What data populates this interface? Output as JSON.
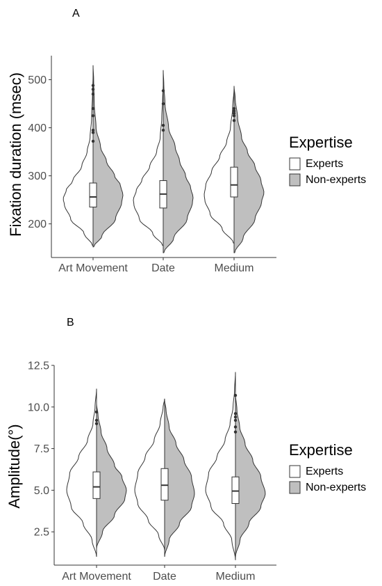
{
  "colors": {
    "experts": "#ffffff",
    "non_experts": "#bfbfbf",
    "outline": "#333333"
  },
  "chart_data": [
    {
      "panel_label": "A",
      "type": "violin",
      "categories": [
        "Art Movement",
        "Date",
        "Medium"
      ],
      "ylabel": "Fixation duration (msec)",
      "xlabel": "",
      "ylim": [
        130,
        550
      ],
      "yticks": [
        200,
        300,
        400,
        500
      ],
      "ytick_labels": [
        "200",
        "300",
        "400",
        "500"
      ],
      "legend": {
        "title": "Expertise",
        "entries": [
          "Experts",
          "Non-experts"
        ],
        "position": "right"
      },
      "series": [
        {
          "name": "Experts",
          "groups": [
            {
              "category": "Art Movement",
              "min": 155,
              "max": 508,
              "mode": 252,
              "profile": [
                [
                  155,
                  0.02
                ],
                [
                  180,
                  0.3
                ],
                [
                  210,
                  0.75
                ],
                [
                  240,
                  0.96
                ],
                [
                  252,
                  1.0
                ],
                [
                  270,
                  0.9
                ],
                [
                  290,
                  0.68
                ],
                [
                  320,
                  0.38
                ],
                [
                  350,
                  0.2
                ],
                [
                  380,
                  0.1
                ],
                [
                  420,
                  0.05
                ],
                [
                  470,
                  0.02
                ],
                [
                  508,
                  0.0
                ]
              ]
            },
            {
              "category": "Date",
              "min": 155,
              "max": 488,
              "mode": 250,
              "profile": [
                [
                  155,
                  0.02
                ],
                [
                  180,
                  0.35
                ],
                [
                  210,
                  0.8
                ],
                [
                  240,
                  0.98
                ],
                [
                  250,
                  1.0
                ],
                [
                  270,
                  0.9
                ],
                [
                  290,
                  0.72
                ],
                [
                  320,
                  0.45
                ],
                [
                  350,
                  0.22
                ],
                [
                  380,
                  0.1
                ],
                [
                  420,
                  0.05
                ],
                [
                  460,
                  0.02
                ],
                [
                  488,
                  0.0
                ]
              ]
            },
            {
              "category": "Medium",
              "min": 160,
              "max": 482,
              "mode": 260,
              "profile": [
                [
                  160,
                  0.02
                ],
                [
                  190,
                  0.4
                ],
                [
                  220,
                  0.8
                ],
                [
                  250,
                  0.98
                ],
                [
                  260,
                  1.0
                ],
                [
                  280,
                  0.95
                ],
                [
                  310,
                  0.75
                ],
                [
                  340,
                  0.48
                ],
                [
                  370,
                  0.25
                ],
                [
                  400,
                  0.12
                ],
                [
                  440,
                  0.05
                ],
                [
                  482,
                  0.0
                ]
              ]
            }
          ]
        },
        {
          "name": "Non-experts",
          "groups": [
            {
              "category": "Art Movement",
              "min": 152,
              "max": 530,
              "mode": 260,
              "profile": [
                [
                  152,
                  0.02
                ],
                [
                  175,
                  0.3
                ],
                [
                  210,
                  0.75
                ],
                [
                  245,
                  0.96
                ],
                [
                  260,
                  1.0
                ],
                [
                  280,
                  0.92
                ],
                [
                  300,
                  0.72
                ],
                [
                  330,
                  0.45
                ],
                [
                  360,
                  0.25
                ],
                [
                  400,
                  0.1
                ],
                [
                  450,
                  0.04
                ],
                [
                  500,
                  0.02
                ],
                [
                  530,
                  0.0
                ]
              ]
            },
            {
              "category": "Date",
              "min": 140,
              "max": 520,
              "mode": 255,
              "profile": [
                [
                  140,
                  0.02
                ],
                [
                  170,
                  0.35
                ],
                [
                  210,
                  0.8
                ],
                [
                  245,
                  0.98
                ],
                [
                  255,
                  1.0
                ],
                [
                  275,
                  0.92
                ],
                [
                  300,
                  0.75
                ],
                [
                  330,
                  0.55
                ],
                [
                  360,
                  0.4
                ],
                [
                  400,
                  0.18
                ],
                [
                  450,
                  0.06
                ],
                [
                  490,
                  0.02
                ],
                [
                  520,
                  0.0
                ]
              ]
            },
            {
              "category": "Medium",
              "min": 140,
              "max": 487,
              "mode": 265,
              "profile": [
                [
                  140,
                  0.02
                ],
                [
                  170,
                  0.3
                ],
                [
                  210,
                  0.7
                ],
                [
                  245,
                  0.92
                ],
                [
                  265,
                  1.0
                ],
                [
                  290,
                  0.9
                ],
                [
                  320,
                  0.7
                ],
                [
                  350,
                  0.45
                ],
                [
                  380,
                  0.25
                ],
                [
                  420,
                  0.12
                ],
                [
                  460,
                  0.04
                ],
                [
                  487,
                  0.0
                ]
              ]
            }
          ]
        }
      ],
      "boxplots": [
        {
          "category": "Art Movement",
          "q1": 235,
          "median": 256,
          "q3": 285,
          "whisker_low": 192,
          "whisker_high": 368,
          "outliers": [
            372,
            390,
            395,
            425,
            440,
            470,
            480,
            488
          ]
        },
        {
          "category": "Date",
          "q1": 233,
          "median": 262,
          "q3": 290,
          "whisker_low": 182,
          "whisker_high": 368,
          "outliers": [
            395,
            405,
            450,
            477
          ]
        },
        {
          "category": "Medium",
          "q1": 256,
          "median": 281,
          "q3": 318,
          "whisker_low": 190,
          "whisker_high": 412,
          "outliers": [
            415,
            425,
            430,
            435,
            440
          ]
        }
      ]
    },
    {
      "panel_label": "B",
      "type": "violin",
      "categories": [
        "Art Movement",
        "Date",
        "Medium"
      ],
      "ylabel": "Amplitude(°)",
      "xlabel": "",
      "ylim": [
        0.5,
        12.5
      ],
      "yticks": [
        2.5,
        5.0,
        7.5,
        10.0,
        12.5
      ],
      "ytick_labels": [
        "2.5",
        "5.0",
        "7.5",
        "10.0",
        "12.5"
      ],
      "legend": {
        "title": "Expertise",
        "entries": [
          "Experts",
          "Non-experts"
        ],
        "position": "right"
      },
      "series": [
        {
          "name": "Experts",
          "groups": [
            {
              "category": "Art Movement",
              "min": 1.0,
              "max": 11.1,
              "mode": 5.0,
              "profile": [
                [
                  1.0,
                  0.0
                ],
                [
                  2.0,
                  0.15
                ],
                [
                  3.0,
                  0.45
                ],
                [
                  4.0,
                  0.85
                ],
                [
                  5.0,
                  1.0
                ],
                [
                  6.0,
                  0.9
                ],
                [
                  7.0,
                  0.6
                ],
                [
                  8.0,
                  0.3
                ],
                [
                  9.0,
                  0.12
                ],
                [
                  10.0,
                  0.05
                ],
                [
                  11.1,
                  0.0
                ]
              ]
            },
            {
              "category": "Date",
              "min": 1.4,
              "max": 10.5,
              "mode": 5.0,
              "profile": [
                [
                  1.4,
                  0.0
                ],
                [
                  2.3,
                  0.2
                ],
                [
                  3.2,
                  0.55
                ],
                [
                  4.2,
                  0.9
                ],
                [
                  5.0,
                  1.0
                ],
                [
                  6.0,
                  0.9
                ],
                [
                  7.0,
                  0.65
                ],
                [
                  8.0,
                  0.35
                ],
                [
                  9.0,
                  0.15
                ],
                [
                  10.0,
                  0.05
                ],
                [
                  10.5,
                  0.0
                ]
              ]
            },
            {
              "category": "Medium",
              "min": 0.8,
              "max": 12.1,
              "mode": 5.0,
              "profile": [
                [
                  0.8,
                  0.0
                ],
                [
                  2.0,
                  0.12
                ],
                [
                  3.0,
                  0.4
                ],
                [
                  4.0,
                  0.82
                ],
                [
                  5.0,
                  1.0
                ],
                [
                  6.0,
                  0.9
                ],
                [
                  7.0,
                  0.62
                ],
                [
                  8.0,
                  0.35
                ],
                [
                  9.0,
                  0.18
                ],
                [
                  10.0,
                  0.08
                ],
                [
                  11.0,
                  0.03
                ],
                [
                  12.1,
                  0.0
                ]
              ]
            }
          ]
        },
        {
          "name": "Non-experts",
          "groups": [
            {
              "category": "Art Movement",
              "min": 1.5,
              "max": 10.2,
              "mode": 5.0,
              "profile": [
                [
                  1.5,
                  0.0
                ],
                [
                  2.5,
                  0.2
                ],
                [
                  3.5,
                  0.6
                ],
                [
                  4.5,
                  0.95
                ],
                [
                  5.0,
                  1.0
                ],
                [
                  5.8,
                  0.85
                ],
                [
                  6.5,
                  0.6
                ],
                [
                  7.5,
                  0.35
                ],
                [
                  8.5,
                  0.15
                ],
                [
                  9.5,
                  0.05
                ],
                [
                  10.2,
                  0.0
                ]
              ]
            },
            {
              "category": "Date",
              "min": 1.0,
              "max": 10.4,
              "mode": 4.8,
              "profile": [
                [
                  1.0,
                  0.0
                ],
                [
                  2.0,
                  0.15
                ],
                [
                  3.0,
                  0.5
                ],
                [
                  4.0,
                  0.9
                ],
                [
                  4.8,
                  1.0
                ],
                [
                  5.8,
                  0.9
                ],
                [
                  6.8,
                  0.65
                ],
                [
                  7.8,
                  0.38
                ],
                [
                  8.8,
                  0.15
                ],
                [
                  9.8,
                  0.05
                ],
                [
                  10.4,
                  0.0
                ]
              ]
            },
            {
              "category": "Medium",
              "min": 1.0,
              "max": 10.8,
              "mode": 4.8,
              "profile": [
                [
                  1.0,
                  0.0
                ],
                [
                  2.0,
                  0.15
                ],
                [
                  3.0,
                  0.45
                ],
                [
                  4.0,
                  0.85
                ],
                [
                  4.8,
                  1.0
                ],
                [
                  5.8,
                  0.85
                ],
                [
                  6.8,
                  0.58
                ],
                [
                  7.8,
                  0.32
                ],
                [
                  8.8,
                  0.14
                ],
                [
                  9.8,
                  0.05
                ],
                [
                  10.8,
                  0.0
                ]
              ]
            }
          ]
        }
      ],
      "boxplots": [
        {
          "category": "Art Movement",
          "q1": 4.5,
          "median": 5.2,
          "q3": 6.1,
          "whisker_low": 2.3,
          "whisker_high": 8.6,
          "outliers": [
            9.0,
            9.2,
            9.7
          ]
        },
        {
          "category": "Date",
          "q1": 4.4,
          "median": 5.3,
          "q3": 6.3,
          "whisker_low": 2.3,
          "whisker_high": 9.1,
          "outliers": []
        },
        {
          "category": "Medium",
          "q1": 4.2,
          "median": 4.95,
          "q3": 5.8,
          "whisker_low": 2.1,
          "whisker_high": 8.3,
          "outliers": [
            8.5,
            8.8,
            9.2,
            9.4,
            9.6,
            10.7
          ]
        }
      ]
    }
  ]
}
